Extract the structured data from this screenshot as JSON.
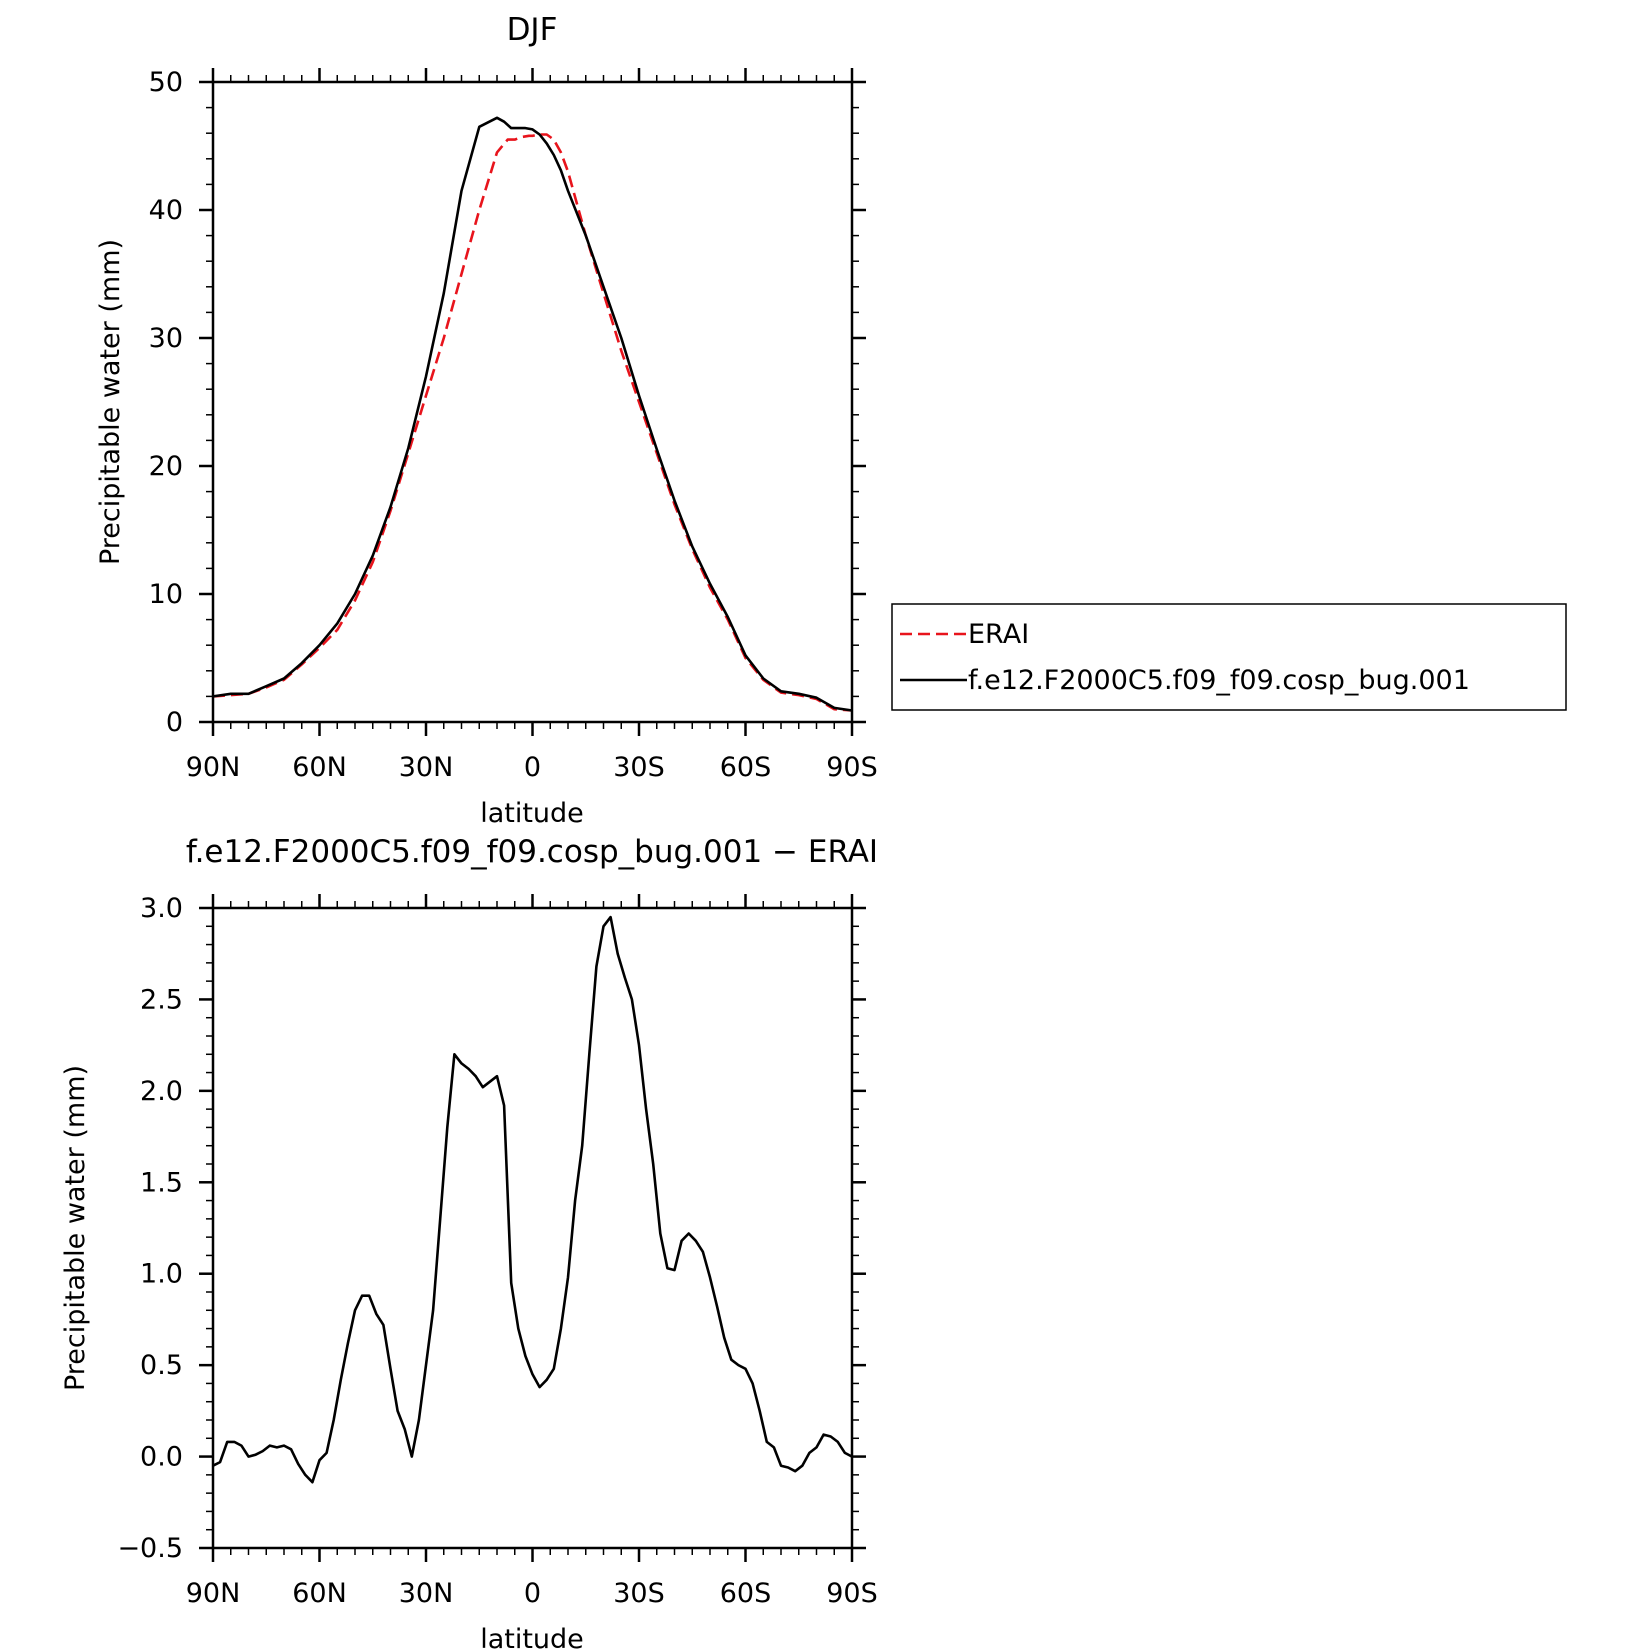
{
  "chart_data": [
    {
      "type": "line",
      "title": "DJF",
      "xlabel": "latitude",
      "ylabel": "Precipitable water (mm)",
      "xlim": [
        90,
        -90
      ],
      "ylim": [
        0,
        50
      ],
      "x_tick_labels": [
        "90N",
        "60N",
        "30N",
        "0",
        "30S",
        "60S",
        "90S"
      ],
      "x_tick_values": [
        90,
        60,
        30,
        0,
        -30,
        -60,
        -90
      ],
      "y_tick_labels": [
        "0",
        "10",
        "20",
        "30",
        "40",
        "50"
      ],
      "y_tick_values": [
        0,
        10,
        20,
        30,
        40,
        50
      ],
      "grid": false,
      "legend_position": "right",
      "series": [
        {
          "name": "ERAI",
          "color": "#e8141c",
          "style": "dashed",
          "x": [
            90,
            85,
            80,
            75,
            70,
            65,
            60,
            55,
            50,
            45,
            40,
            35,
            30,
            25,
            20,
            15,
            10,
            7,
            5,
            3,
            1,
            0,
            -2,
            -4,
            -6,
            -8,
            -10,
            -15,
            -20,
            -25,
            -30,
            -35,
            -40,
            -45,
            -50,
            -55,
            -60,
            -65,
            -70,
            -75,
            -80,
            -85,
            -90
          ],
          "values": [
            2.0,
            2.1,
            2.2,
            2.7,
            3.3,
            4.5,
            5.8,
            7.2,
            9.5,
            12.5,
            16.5,
            21.0,
            25.5,
            30.0,
            35.0,
            40.0,
            44.5,
            45.5,
            45.5,
            45.7,
            45.8,
            45.8,
            45.9,
            45.9,
            45.5,
            44.5,
            43.0,
            38.0,
            33.5,
            29.0,
            25.0,
            21.0,
            17.0,
            13.5,
            10.5,
            8.0,
            5.0,
            3.3,
            2.3,
            2.1,
            1.8,
            1.0,
            0.9
          ]
        },
        {
          "name": "f.e12.F2000C5.f09_f09.cosp_bug.001",
          "color": "#000000",
          "style": "solid",
          "x": [
            90,
            85,
            80,
            75,
            70,
            65,
            60,
            55,
            50,
            45,
            40,
            35,
            30,
            25,
            20,
            15,
            10,
            8,
            6,
            4,
            2,
            0,
            -2,
            -4,
            -6,
            -8,
            -10,
            -15,
            -20,
            -25,
            -30,
            -35,
            -40,
            -45,
            -50,
            -55,
            -60,
            -65,
            -70,
            -75,
            -80,
            -85,
            -90
          ],
          "values": [
            2.0,
            2.2,
            2.2,
            2.8,
            3.4,
            4.6,
            6.0,
            7.7,
            10.0,
            13.0,
            16.8,
            21.4,
            27.0,
            33.5,
            41.5,
            46.5,
            47.2,
            46.9,
            46.4,
            46.4,
            46.4,
            46.3,
            45.9,
            45.2,
            44.3,
            43.1,
            41.5,
            38.0,
            34.0,
            30.0,
            25.5,
            21.3,
            17.3,
            13.7,
            10.8,
            8.2,
            5.2,
            3.4,
            2.4,
            2.2,
            1.9,
            1.1,
            0.9
          ]
        }
      ]
    },
    {
      "type": "line",
      "title": "f.e12.F2000C5.f09_f09.cosp_bug.001 − ERAI",
      "xlabel": "latitude",
      "ylabel": "Precipitable water (mm)",
      "xlim": [
        90,
        -90
      ],
      "ylim": [
        -0.5,
        3.0
      ],
      "x_tick_labels": [
        "90N",
        "60N",
        "30N",
        "0",
        "30S",
        "60S",
        "90S"
      ],
      "x_tick_values": [
        90,
        60,
        30,
        0,
        -30,
        -60,
        -90
      ],
      "y_tick_labels": [
        "−0.5",
        "0.0",
        "0.5",
        "1.0",
        "1.5",
        "2.0",
        "2.5",
        "3.0"
      ],
      "y_tick_values": [
        -0.5,
        0.0,
        0.5,
        1.0,
        1.5,
        2.0,
        2.5,
        3.0
      ],
      "grid": false,
      "series": [
        {
          "color": "#000000",
          "style": "solid",
          "x": [
            90,
            88,
            86,
            84,
            82,
            80,
            78,
            76,
            74,
            72,
            70,
            68,
            66,
            64,
            62,
            60,
            58,
            56,
            54,
            52,
            50,
            48,
            46,
            44,
            42,
            40,
            38,
            36,
            34,
            32,
            30,
            28,
            26,
            24,
            22,
            20,
            18,
            16,
            14,
            12,
            10,
            8,
            6,
            4,
            2,
            0,
            -2,
            -4,
            -6,
            -8,
            -10,
            -12,
            -14,
            -16,
            -18,
            -20,
            -22,
            -24,
            -26,
            -28,
            -30,
            -32,
            -34,
            -36,
            -38,
            -40,
            -42,
            -44,
            -46,
            -48,
            -50,
            -52,
            -54,
            -56,
            -58,
            -60,
            -62,
            -64,
            -66,
            -68,
            -70,
            -72,
            -74,
            -76,
            -78,
            -80,
            -82,
            -84,
            -86,
            -88,
            -90
          ],
          "values": [
            -0.05,
            -0.03,
            0.08,
            0.08,
            0.06,
            0.0,
            0.01,
            0.03,
            0.06,
            0.05,
            0.06,
            0.04,
            -0.04,
            -0.1,
            -0.14,
            -0.02,
            0.02,
            0.2,
            0.42,
            0.62,
            0.8,
            0.88,
            0.88,
            0.78,
            0.72,
            0.48,
            0.25,
            0.15,
            0.0,
            0.2,
            0.5,
            0.8,
            1.3,
            1.8,
            2.2,
            2.15,
            2.12,
            2.08,
            2.02,
            2.05,
            2.08,
            1.92,
            0.95,
            0.7,
            0.55,
            0.45,
            0.38,
            0.42,
            0.48,
            0.7,
            0.98,
            1.4,
            1.7,
            2.2,
            2.68,
            2.9,
            2.95,
            2.75,
            2.62,
            2.5,
            2.25,
            1.9,
            1.6,
            1.22,
            1.03,
            1.02,
            1.18,
            1.22,
            1.18,
            1.12,
            0.98,
            0.82,
            0.65,
            0.53,
            0.5,
            0.48,
            0.4,
            0.25,
            0.08,
            0.05,
            -0.05,
            -0.06,
            -0.08,
            -0.05,
            0.02,
            0.05,
            0.12,
            0.11,
            0.08,
            0.02,
            0.0
          ]
        }
      ]
    }
  ]
}
